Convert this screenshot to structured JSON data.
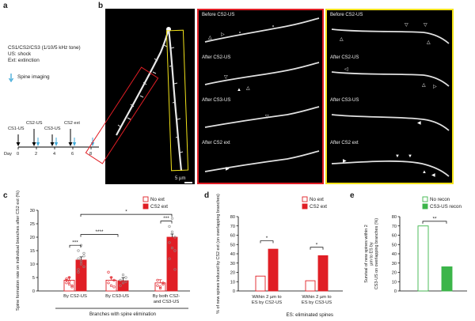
{
  "panel_labels": {
    "a": "a",
    "b": "b",
    "c": "c",
    "d": "d",
    "e": "e"
  },
  "panel_a": {
    "legend_lines": [
      "CS1/CS2/CS3 (1/10/5 kHz tone)",
      "US: shock",
      "Ext: extinction"
    ],
    "spine_imaging": "Spine imaging",
    "timeline_events": [
      "CS1-US",
      "CS2-US",
      "CS3-US",
      "CS2 ext"
    ],
    "day_label": "Day",
    "days": [
      "0",
      "2",
      "4",
      "6",
      "8"
    ]
  },
  "panel_b": {
    "red_titles": [
      "Before CS2-US",
      "After CS2-US",
      "After CS3-US",
      "After CS2 ext"
    ],
    "yellow_titles": [
      "Before CS2-US",
      "After CS2-US",
      "After CS3-US",
      "After CS2 ext"
    ],
    "scale_bar": "5 µm",
    "colors": {
      "red": "#e01e25",
      "yellow": "#f2e21a"
    }
  },
  "panel_c": {
    "legend": [
      "No ext",
      "CS2 ext"
    ],
    "ylabel": "Spine formation rate on individual branches after CS2 ext (%)",
    "yticks": [
      "0",
      "5",
      "10",
      "15",
      "20",
      "25",
      "30"
    ],
    "xlabels": [
      "By CS2-US",
      "By CS3-US",
      "By both CS2- and CS3-US"
    ],
    "xgroup_label": "Branches with spine elimination",
    "sig": [
      "***",
      "****",
      "*",
      "***"
    ],
    "chart_data": {
      "type": "bar",
      "categories": [
        "By CS2-US",
        "By CS3-US",
        "By both CS2- and CS3-US"
      ],
      "series": [
        {
          "name": "No ext",
          "values": [
            4,
            4,
            3
          ]
        },
        {
          "name": "CS2 ext",
          "values": [
            11.5,
            3.8,
            20
          ]
        }
      ],
      "ylim": [
        0,
        30
      ]
    }
  },
  "panel_d": {
    "legend": [
      "No ext",
      "CS2 ext"
    ],
    "ylabel": "% of new spines induced by CS2 ext (on overlapping branches)",
    "yticks": [
      "0",
      "10",
      "20",
      "30",
      "40",
      "50",
      "60",
      "70",
      "80"
    ],
    "xlabels": [
      "Within 2 µm to ES by CS2-US",
      "Within 2 µm to ES by CS3-US"
    ],
    "footnote": "ES: eliminated spines",
    "sig": [
      "*",
      "*"
    ],
    "chart_data": {
      "type": "bar",
      "categories": [
        "Within 2 µm to ES by CS2-US",
        "Within 2 µm to ES by CS3-US"
      ],
      "series": [
        {
          "name": "No ext",
          "values": [
            16,
            11
          ]
        },
        {
          "name": "CS2 ext",
          "values": [
            45,
            38
          ]
        }
      ],
      "ylim": [
        0,
        80
      ]
    }
  },
  "panel_e": {
    "legend": [
      "No recon",
      "CS3-US recon"
    ],
    "ylabel": "Survival of new spines within 2 µm to ES by CS3-US on overlapping branches (%)",
    "yticks": [
      "0",
      "10",
      "20",
      "30",
      "40",
      "50",
      "60",
      "70",
      "80"
    ],
    "sig": [
      "**"
    ],
    "chart_data": {
      "type": "bar",
      "categories": [
        "No recon",
        "CS3-US recon"
      ],
      "values": [
        70,
        26
      ],
      "ylim": [
        0,
        80
      ]
    }
  }
}
